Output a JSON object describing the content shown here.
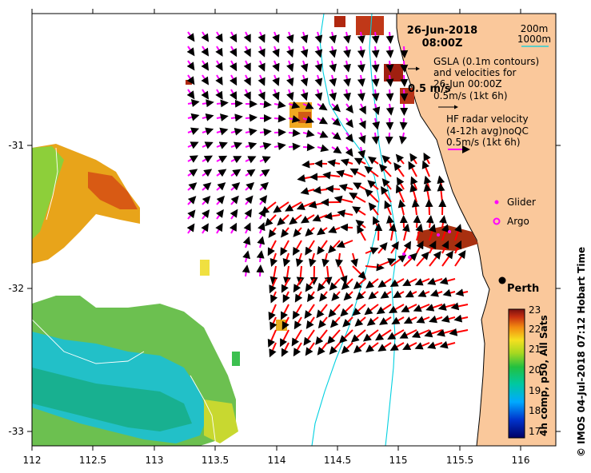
{
  "map": {
    "date_line": "26-Jun-2018",
    "time_line": "08:00Z",
    "contour_legend": [
      "200m",
      "1000m"
    ],
    "gsla_legend": [
      "GSLA (0.1m contours)",
      "and velocities for",
      "26-Jun 00:00Z",
      "0.5m/s (1kt 6h)"
    ],
    "hf_legend": [
      "HF radar velocity",
      "(4-12h avg)noQC",
      "0.5m/s (1kt 6h)"
    ],
    "scale_label": "0.5 m/s",
    "glider_label": "Glider",
    "argo_label": "Argo",
    "city_label": "Perth",
    "colorbar_title": "4h comp, p50, All Sats",
    "credit": "© IMOS 04-Jul-2018 07:12 Hobart Time"
  },
  "axes": {
    "x_ticks": [
      "112",
      "112.5",
      "113",
      "113.5",
      "114",
      "114.5",
      "115",
      "115.5",
      "116"
    ],
    "y_ticks": [
      "-31",
      "-32",
      "-33"
    ]
  },
  "colorbar": {
    "ticks": [
      "23",
      "22",
      "21",
      "20",
      "19",
      "18",
      "17"
    ]
  },
  "colors": {
    "land": "#fac89b",
    "sat_vectors": "#ff00ff",
    "hf_vectors": "#ff0000",
    "isobath": "#00d0e0"
  }
}
